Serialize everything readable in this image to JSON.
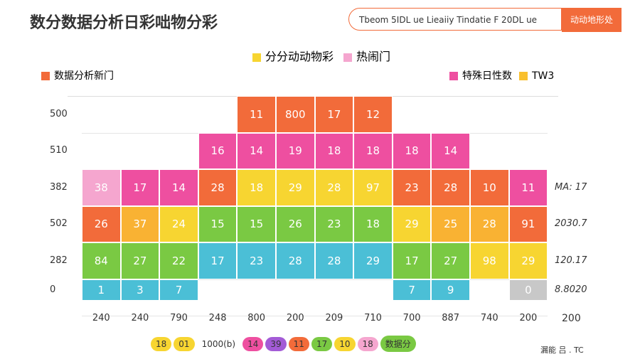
{
  "header": {
    "logo": "数分数据分析日彩咄物分彩",
    "search": "Tbeom 5IDL ue Lieaiiy Tindatie F 20DL ue",
    "button": "动动地形处"
  },
  "legend_top": [
    {
      "label": "分分动动物彩",
      "color": "#f7d531"
    },
    {
      "label": "热闹门",
      "color": "#f5a6cf"
    }
  ],
  "left_legend": {
    "label": "数据分析新门",
    "color": "#f26b3a"
  },
  "right_legend": [
    {
      "label": "特殊日性数",
      "color": "#ee4fa0"
    },
    {
      "label": "TW3",
      "color": "#f9c02e"
    }
  ],
  "grid": {
    "rows": [
      {
        "label": "500",
        "right": null,
        "cells": [
          null,
          null,
          null,
          null,
          {
            "text": "11",
            "color": "#f26b3a"
          },
          {
            "text": "800",
            "color": "#f26b3a"
          },
          {
            "text": "17",
            "color": "#f26b3a"
          },
          {
            "text": "12",
            "color": "#f26b3a"
          },
          null,
          null,
          null,
          null
        ]
      },
      {
        "label": "510",
        "right": null,
        "cells": [
          null,
          null,
          null,
          {
            "text": "16",
            "color": "#ee4fa0"
          },
          {
            "text": "14",
            "color": "#ee4fa0"
          },
          {
            "text": "19",
            "color": "#ee4fa0"
          },
          {
            "text": "18",
            "color": "#ee4fa0"
          },
          {
            "text": "18",
            "color": "#ee4fa0"
          },
          {
            "text": "18",
            "color": "#ee4fa0"
          },
          {
            "text": "14",
            "color": "#ee4fa0"
          },
          null,
          null
        ]
      },
      {
        "label": "382",
        "right": "MA: 17",
        "cells": [
          {
            "text": "38",
            "color": "#f5a6cf"
          },
          {
            "text": "17",
            "color": "#ee4fa0"
          },
          {
            "text": "14",
            "color": "#ee4fa0"
          },
          {
            "text": "28",
            "color": "#f26b3a"
          },
          {
            "text": "18",
            "color": "#f7d531"
          },
          {
            "text": "29",
            "color": "#f7d531"
          },
          {
            "text": "28",
            "color": "#f7d531"
          },
          {
            "text": "97",
            "color": "#f7d531"
          },
          {
            "text": "23",
            "color": "#f26b3a"
          },
          {
            "text": "28",
            "color": "#f26b3a"
          },
          {
            "text": "10",
            "color": "#f26b3a"
          },
          {
            "text": "11",
            "color": "#ee4fa0"
          }
        ]
      },
      {
        "label": "502",
        "right": "2030.7",
        "cells": [
          {
            "text": "26",
            "color": "#f26b3a"
          },
          {
            "text": "37",
            "color": "#f9b233"
          },
          {
            "text": "24",
            "color": "#f7d531"
          },
          {
            "text": "15",
            "color": "#7ac943"
          },
          {
            "text": "15",
            "color": "#7ac943"
          },
          {
            "text": "26",
            "color": "#7ac943"
          },
          {
            "text": "23",
            "color": "#7ac943"
          },
          {
            "text": "18",
            "color": "#7ac943"
          },
          {
            "text": "29",
            "color": "#f7d531"
          },
          {
            "text": "25",
            "color": "#f9b233"
          },
          {
            "text": "28",
            "color": "#f9b233"
          },
          {
            "text": "91",
            "color": "#f26b3a"
          }
        ]
      },
      {
        "label": "282",
        "right": "120.17",
        "cells": [
          {
            "text": "84",
            "color": "#7ac943"
          },
          {
            "text": "27",
            "color": "#7ac943"
          },
          {
            "text": "22",
            "color": "#7ac943"
          },
          {
            "text": "17",
            "color": "#4bbfd6"
          },
          {
            "text": "23",
            "color": "#4bbfd6"
          },
          {
            "text": "28",
            "color": "#4bbfd6"
          },
          {
            "text": "28",
            "color": "#4bbfd6"
          },
          {
            "text": "29",
            "color": "#4bbfd6"
          },
          {
            "text": "17",
            "color": "#7ac943"
          },
          {
            "text": "27",
            "color": "#7ac943"
          },
          {
            "text": "98",
            "color": "#f7d531"
          },
          {
            "text": "29",
            "color": "#f7d531"
          }
        ]
      },
      {
        "label": "0",
        "right": "8.8020",
        "cells": [
          {
            "text": "1",
            "color": "#4bbfd6"
          },
          {
            "text": "3",
            "color": "#4bbfd6"
          },
          {
            "text": "7",
            "color": "#4bbfd6"
          },
          null,
          null,
          null,
          null,
          null,
          {
            "text": "7",
            "color": "#4bbfd6"
          },
          {
            "text": "9",
            "color": "#4bbfd6"
          },
          null,
          {
            "text": "0",
            "color": "#c8c8c8"
          }
        ]
      }
    ],
    "columns": [
      "240",
      "240",
      "790",
      "248",
      "800",
      "200",
      "209",
      "710",
      "700",
      "887",
      "740",
      "200"
    ],
    "right_column": "200"
  },
  "legend_bottom": [
    {
      "label": "18",
      "color": "#f7d531"
    },
    {
      "label": "01",
      "color": "#f7d531"
    },
    {
      "label": "1000(b)",
      "color": "#ffffff"
    },
    {
      "label": "14",
      "color": "#ee4fa0"
    },
    {
      "label": "39",
      "color": "#a35bd6"
    },
    {
      "label": "11",
      "color": "#f26b3a"
    },
    {
      "label": "17",
      "color": "#7ac943"
    },
    {
      "label": "10",
      "color": "#f7d531"
    },
    {
      "label": "18",
      "color": "#f5a6cf"
    },
    {
      "label": "数据分",
      "color": "#7ac943"
    }
  ],
  "footer": "漏能 吕 . TC"
}
